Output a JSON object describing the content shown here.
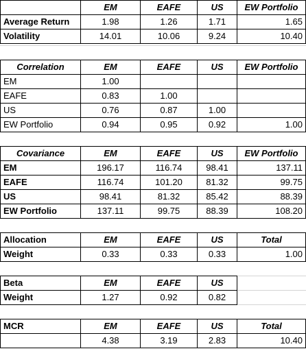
{
  "sections": [
    {
      "id": "returns",
      "header": [
        "",
        "EM",
        "EAFE",
        "US",
        "EW Portfolio"
      ],
      "header_style": "bi",
      "rows": [
        {
          "label": "Average Return",
          "label_style": "b",
          "values": [
            "1.98",
            "1.26",
            "1.71",
            "1.65"
          ]
        },
        {
          "label": "Volatility",
          "label_style": "b",
          "values": [
            "14.01",
            "10.06",
            "9.24",
            "10.40"
          ]
        }
      ]
    },
    {
      "id": "correlation",
      "header": [
        "Correlation",
        "EM",
        "EAFE",
        "US",
        "EW Portfolio"
      ],
      "header_style": "bi",
      "rows": [
        {
          "label": "EM",
          "label_style": "",
          "values": [
            "1.00",
            "",
            "",
            ""
          ]
        },
        {
          "label": "EAFE",
          "label_style": "",
          "values": [
            "0.83",
            "1.00",
            "",
            ""
          ]
        },
        {
          "label": "US",
          "label_style": "",
          "values": [
            "0.76",
            "0.87",
            "1.00",
            ""
          ]
        },
        {
          "label": "EW Portfolio",
          "label_style": "",
          "values": [
            "0.94",
            "0.95",
            "0.92",
            "1.00"
          ]
        }
      ]
    },
    {
      "id": "covariance",
      "header": [
        "Covariance",
        "EM",
        "EAFE",
        "US",
        "EW Portfolio"
      ],
      "header_style": "bi",
      "rows": [
        {
          "label": "EM",
          "label_style": "b",
          "values": [
            "196.17",
            "116.74",
            "98.41",
            "137.11"
          ]
        },
        {
          "label": "EAFE",
          "label_style": "b",
          "values": [
            "116.74",
            "101.20",
            "81.32",
            "99.75"
          ]
        },
        {
          "label": "US",
          "label_style": "b",
          "values": [
            "98.41",
            "81.32",
            "85.42",
            "88.39"
          ]
        },
        {
          "label": "EW Portfolio",
          "label_style": "b",
          "values": [
            "137.11",
            "99.75",
            "88.39",
            "108.20"
          ]
        }
      ]
    },
    {
      "id": "allocation",
      "header": [
        "Allocation",
        "EM",
        "EAFE",
        "US",
        "Total"
      ],
      "header_style": "bi",
      "rows": [
        {
          "label": "Weight",
          "label_style": "b",
          "values": [
            "0.33",
            "0.33",
            "0.33",
            "1.00"
          ]
        }
      ]
    },
    {
      "id": "beta",
      "header": [
        "Beta",
        "EM",
        "EAFE",
        "US"
      ],
      "header_style": "bi",
      "rows": [
        {
          "label": "Weight",
          "label_style": "b",
          "values": [
            "1.27",
            "0.92",
            "0.82"
          ]
        }
      ]
    },
    {
      "id": "mcr",
      "header": [
        "MCR",
        "EM",
        "EAFE",
        "US",
        "Total"
      ],
      "header_style": "bi",
      "rows": [
        {
          "label": "",
          "label_style": "b",
          "values": [
            "4.38",
            "3.19",
            "2.83",
            "10.40"
          ]
        }
      ]
    }
  ]
}
